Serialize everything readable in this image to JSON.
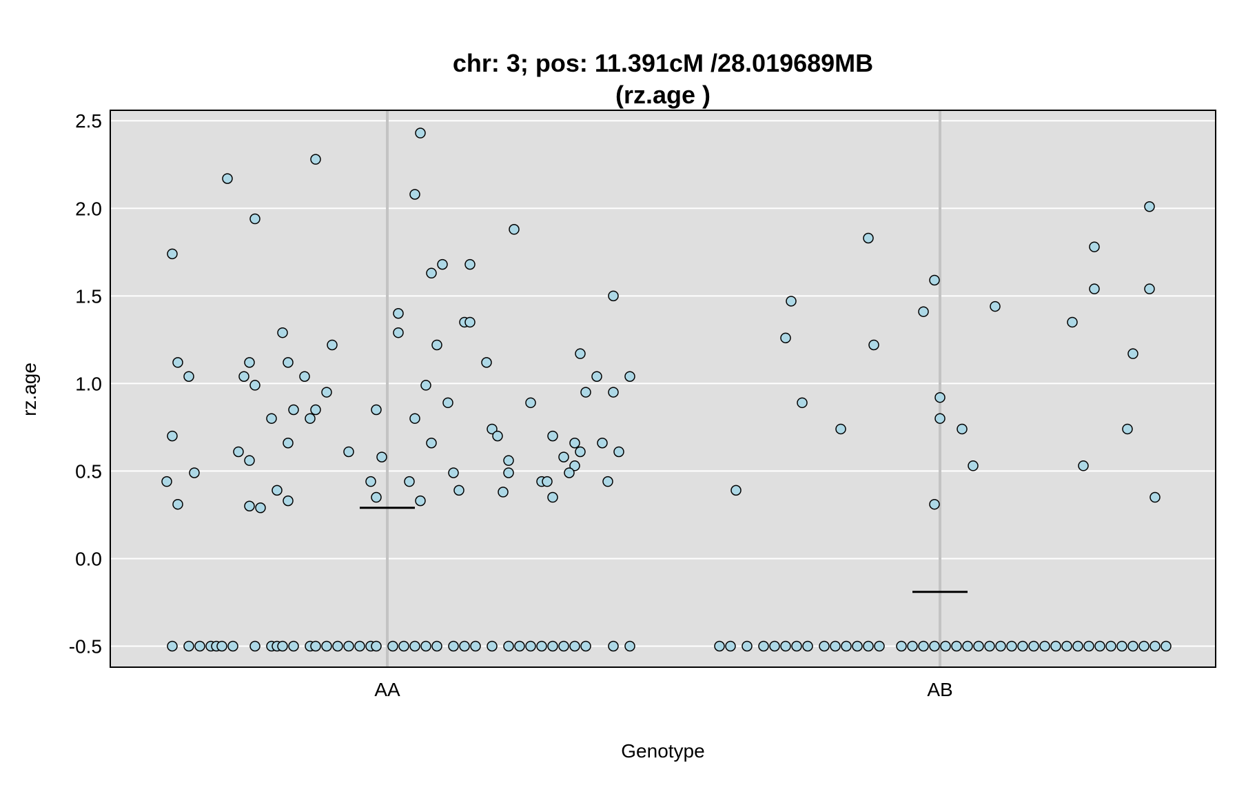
{
  "chart_data": {
    "type": "scatter",
    "title": "chr: 3; pos: 11.391cM /28.019689MB",
    "subtitle": "(rz.age )",
    "xlabel": "Genotype",
    "ylabel": "rz.age",
    "categories": [
      "AA",
      "AB"
    ],
    "ylim": [
      -0.62,
      2.56
    ],
    "yticks": [
      -0.5,
      0.0,
      0.5,
      1.0,
      1.5,
      2.0,
      2.5
    ],
    "ytick_labels": [
      "-0.5",
      "0.0",
      "0.5",
      "1.0",
      "1.5",
      "2.0",
      "2.5"
    ],
    "grid": true,
    "colors": {
      "panel_background": "#dfdfdf",
      "grid_line": "#ffffff",
      "category_line": "#c3c3c3",
      "point_fill": "#add8e6",
      "point_stroke": "#000000",
      "mean_line": "#000000"
    },
    "means": [
      {
        "category": "AA",
        "value": 0.29
      },
      {
        "category": "AB",
        "value": -0.19
      }
    ],
    "series": [
      {
        "category": "AA",
        "points": [
          {
            "x": -0.39,
            "y": 1.74
          },
          {
            "x": -0.38,
            "y": 1.12
          },
          {
            "x": -0.36,
            "y": 1.04
          },
          {
            "x": -0.39,
            "y": 0.7
          },
          {
            "x": -0.35,
            "y": 0.49
          },
          {
            "x": -0.4,
            "y": 0.44
          },
          {
            "x": -0.38,
            "y": 0.31
          },
          {
            "x": -0.29,
            "y": 2.17
          },
          {
            "x": -0.24,
            "y": 1.94
          },
          {
            "x": -0.25,
            "y": 1.12
          },
          {
            "x": -0.26,
            "y": 1.04
          },
          {
            "x": -0.24,
            "y": 0.99
          },
          {
            "x": -0.21,
            "y": 0.8
          },
          {
            "x": -0.27,
            "y": 0.61
          },
          {
            "x": -0.25,
            "y": 0.56
          },
          {
            "x": -0.2,
            "y": 0.39
          },
          {
            "x": -0.25,
            "y": 0.3
          },
          {
            "x": -0.23,
            "y": 0.29
          },
          {
            "x": -0.19,
            "y": 1.29
          },
          {
            "x": -0.18,
            "y": 1.12
          },
          {
            "x": -0.17,
            "y": 0.85
          },
          {
            "x": -0.18,
            "y": 0.66
          },
          {
            "x": -0.18,
            "y": 0.33
          },
          {
            "x": -0.13,
            "y": 2.28
          },
          {
            "x": -0.15,
            "y": 1.04
          },
          {
            "x": -0.13,
            "y": 0.85
          },
          {
            "x": -0.14,
            "y": 0.8
          },
          {
            "x": -0.11,
            "y": 0.95
          },
          {
            "x": -0.1,
            "y": 1.22
          },
          {
            "x": -0.07,
            "y": 0.61
          },
          {
            "x": -0.03,
            "y": 0.44
          },
          {
            "x": -0.02,
            "y": 0.35
          },
          {
            "x": -0.02,
            "y": 0.85
          },
          {
            "x": -0.01,
            "y": 0.58
          },
          {
            "x": 0.02,
            "y": 1.4
          },
          {
            "x": 0.02,
            "y": 1.29
          },
          {
            "x": 0.05,
            "y": 0.8
          },
          {
            "x": 0.04,
            "y": 0.44
          },
          {
            "x": 0.06,
            "y": 2.43
          },
          {
            "x": 0.05,
            "y": 2.08
          },
          {
            "x": 0.07,
            "y": 0.99
          },
          {
            "x": 0.06,
            "y": 0.33
          },
          {
            "x": 0.08,
            "y": 1.63
          },
          {
            "x": 0.09,
            "y": 1.22
          },
          {
            "x": 0.08,
            "y": 0.66
          },
          {
            "x": 0.1,
            "y": 1.68
          },
          {
            "x": 0.11,
            "y": 0.89
          },
          {
            "x": 0.12,
            "y": 0.49
          },
          {
            "x": 0.13,
            "y": 0.39
          },
          {
            "x": 0.14,
            "y": 1.35
          },
          {
            "x": 0.15,
            "y": 1.35
          },
          {
            "x": 0.15,
            "y": 1.68
          },
          {
            "x": 0.18,
            "y": 1.12
          },
          {
            "x": 0.19,
            "y": 0.74
          },
          {
            "x": 0.2,
            "y": 0.7
          },
          {
            "x": 0.22,
            "y": 0.56
          },
          {
            "x": 0.22,
            "y": 0.49
          },
          {
            "x": 0.21,
            "y": 0.38
          },
          {
            "x": 0.23,
            "y": 1.88
          },
          {
            "x": 0.26,
            "y": 0.89
          },
          {
            "x": 0.28,
            "y": 0.44
          },
          {
            "x": 0.29,
            "y": 0.44
          },
          {
            "x": 0.3,
            "y": 0.35
          },
          {
            "x": 0.3,
            "y": 0.7
          },
          {
            "x": 0.32,
            "y": 0.58
          },
          {
            "x": 0.34,
            "y": 0.53
          },
          {
            "x": 0.33,
            "y": 0.49
          },
          {
            "x": 0.34,
            "y": 0.66
          },
          {
            "x": 0.35,
            "y": 0.61
          },
          {
            "x": 0.36,
            "y": 0.95
          },
          {
            "x": 0.35,
            "y": 1.17
          },
          {
            "x": 0.38,
            "y": 1.04
          },
          {
            "x": 0.39,
            "y": 0.66
          },
          {
            "x": 0.4,
            "y": 0.44
          },
          {
            "x": 0.41,
            "y": 0.95
          },
          {
            "x": 0.42,
            "y": 0.61
          },
          {
            "x": 0.41,
            "y": 1.5
          },
          {
            "x": 0.44,
            "y": 1.04
          },
          {
            "x": -0.39,
            "y": -0.5
          },
          {
            "x": -0.36,
            "y": -0.5
          },
          {
            "x": -0.34,
            "y": -0.5
          },
          {
            "x": -0.32,
            "y": -0.5
          },
          {
            "x": -0.31,
            "y": -0.5
          },
          {
            "x": -0.3,
            "y": -0.5
          },
          {
            "x": -0.28,
            "y": -0.5
          },
          {
            "x": -0.24,
            "y": -0.5
          },
          {
            "x": -0.21,
            "y": -0.5
          },
          {
            "x": -0.2,
            "y": -0.5
          },
          {
            "x": -0.19,
            "y": -0.5
          },
          {
            "x": -0.17,
            "y": -0.5
          },
          {
            "x": -0.14,
            "y": -0.5
          },
          {
            "x": -0.13,
            "y": -0.5
          },
          {
            "x": -0.11,
            "y": -0.5
          },
          {
            "x": -0.09,
            "y": -0.5
          },
          {
            "x": -0.07,
            "y": -0.5
          },
          {
            "x": -0.05,
            "y": -0.5
          },
          {
            "x": -0.03,
            "y": -0.5
          },
          {
            "x": -0.02,
            "y": -0.5
          },
          {
            "x": 0.01,
            "y": -0.5
          },
          {
            "x": 0.03,
            "y": -0.5
          },
          {
            "x": 0.05,
            "y": -0.5
          },
          {
            "x": 0.07,
            "y": -0.5
          },
          {
            "x": 0.09,
            "y": -0.5
          },
          {
            "x": 0.12,
            "y": -0.5
          },
          {
            "x": 0.14,
            "y": -0.5
          },
          {
            "x": 0.16,
            "y": -0.5
          },
          {
            "x": 0.19,
            "y": -0.5
          },
          {
            "x": 0.22,
            "y": -0.5
          },
          {
            "x": 0.24,
            "y": -0.5
          },
          {
            "x": 0.26,
            "y": -0.5
          },
          {
            "x": 0.28,
            "y": -0.5
          },
          {
            "x": 0.3,
            "y": -0.5
          },
          {
            "x": 0.32,
            "y": -0.5
          },
          {
            "x": 0.34,
            "y": -0.5
          },
          {
            "x": 0.36,
            "y": -0.5
          },
          {
            "x": 0.41,
            "y": -0.5
          },
          {
            "x": 0.44,
            "y": -0.5
          }
        ]
      },
      {
        "category": "AB",
        "points": [
          {
            "x": -0.37,
            "y": 0.39
          },
          {
            "x": -0.28,
            "y": 1.26
          },
          {
            "x": -0.27,
            "y": 1.47
          },
          {
            "x": -0.25,
            "y": 0.89
          },
          {
            "x": -0.18,
            "y": 0.74
          },
          {
            "x": -0.13,
            "y": 1.83
          },
          {
            "x": -0.12,
            "y": 1.22
          },
          {
            "x": -0.03,
            "y": 1.41
          },
          {
            "x": -0.01,
            "y": 1.59
          },
          {
            "x": -0.01,
            "y": 0.31
          },
          {
            "x": 0.0,
            "y": 0.92
          },
          {
            "x": -0.0,
            "y": 0.8
          },
          {
            "x": 0.04,
            "y": 0.74
          },
          {
            "x": 0.06,
            "y": 0.53
          },
          {
            "x": 0.1,
            "y": 1.44
          },
          {
            "x": 0.24,
            "y": 1.35
          },
          {
            "x": 0.26,
            "y": 0.53
          },
          {
            "x": 0.28,
            "y": 1.54
          },
          {
            "x": 0.28,
            "y": 1.78
          },
          {
            "x": 0.34,
            "y": 0.74
          },
          {
            "x": 0.35,
            "y": 1.17
          },
          {
            "x": 0.38,
            "y": 1.54
          },
          {
            "x": 0.38,
            "y": 2.01
          },
          {
            "x": 0.39,
            "y": 0.35
          },
          {
            "x": -0.4,
            "y": -0.5
          },
          {
            "x": -0.38,
            "y": -0.5
          },
          {
            "x": -0.35,
            "y": -0.5
          },
          {
            "x": -0.32,
            "y": -0.5
          },
          {
            "x": -0.3,
            "y": -0.5
          },
          {
            "x": -0.28,
            "y": -0.5
          },
          {
            "x": -0.26,
            "y": -0.5
          },
          {
            "x": -0.24,
            "y": -0.5
          },
          {
            "x": -0.21,
            "y": -0.5
          },
          {
            "x": -0.19,
            "y": -0.5
          },
          {
            "x": -0.17,
            "y": -0.5
          },
          {
            "x": -0.15,
            "y": -0.5
          },
          {
            "x": -0.13,
            "y": -0.5
          },
          {
            "x": -0.11,
            "y": -0.5
          },
          {
            "x": -0.07,
            "y": -0.5
          },
          {
            "x": -0.05,
            "y": -0.5
          },
          {
            "x": -0.03,
            "y": -0.5
          },
          {
            "x": -0.01,
            "y": -0.5
          },
          {
            "x": 0.01,
            "y": -0.5
          },
          {
            "x": 0.03,
            "y": -0.5
          },
          {
            "x": 0.05,
            "y": -0.5
          },
          {
            "x": 0.07,
            "y": -0.5
          },
          {
            "x": 0.09,
            "y": -0.5
          },
          {
            "x": 0.11,
            "y": -0.5
          },
          {
            "x": 0.13,
            "y": -0.5
          },
          {
            "x": 0.15,
            "y": -0.5
          },
          {
            "x": 0.17,
            "y": -0.5
          },
          {
            "x": 0.19,
            "y": -0.5
          },
          {
            "x": 0.21,
            "y": -0.5
          },
          {
            "x": 0.23,
            "y": -0.5
          },
          {
            "x": 0.25,
            "y": -0.5
          },
          {
            "x": 0.27,
            "y": -0.5
          },
          {
            "x": 0.29,
            "y": -0.5
          },
          {
            "x": 0.31,
            "y": -0.5
          },
          {
            "x": 0.33,
            "y": -0.5
          },
          {
            "x": 0.35,
            "y": -0.5
          },
          {
            "x": 0.37,
            "y": -0.5
          },
          {
            "x": 0.39,
            "y": -0.5
          },
          {
            "x": 0.41,
            "y": -0.5
          }
        ]
      }
    ]
  }
}
